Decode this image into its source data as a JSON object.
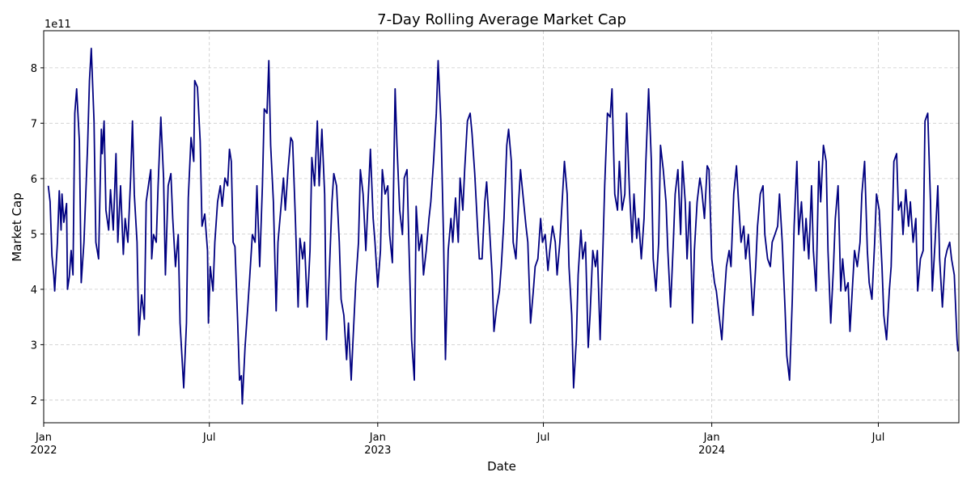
{
  "chart_data": {
    "type": "line",
    "title": "7-Day Rolling Average Market Cap",
    "xlabel": "Date",
    "ylabel": "Market Cap",
    "y_offset_label": "1e11",
    "color": "#000080",
    "grid": true,
    "xlim": [
      0,
      1000
    ],
    "xticks": [
      {
        "value": 0,
        "label": "Jan\n2022"
      },
      {
        "value": 181,
        "label": "Jul"
      },
      {
        "value": 365,
        "label": "Jan\n2023"
      },
      {
        "value": 546,
        "label": "Jul"
      },
      {
        "value": 730,
        "label": "Jan\n2024"
      },
      {
        "value": 912,
        "label": "Jul"
      }
    ],
    "ylim": [
      1.59,
      8.67
    ],
    "yticks": [
      2,
      3,
      4,
      5,
      6,
      7,
      8
    ],
    "x": [
      5,
      7,
      9,
      11,
      12,
      15,
      17,
      19,
      20,
      22,
      25,
      26,
      28,
      30,
      32,
      34,
      36,
      39,
      41,
      44,
      48,
      50,
      52,
      55,
      57,
      60,
      63,
      64,
      66,
      68,
      71,
      73,
      76,
      79,
      81,
      84,
      87,
      89,
      92,
      95,
      97,
      99,
      102,
      104,
      107,
      110,
      112,
      115,
      117,
      118,
      120,
      123,
      125,
      128,
      131,
      133,
      136,
      139,
      141,
      144,
      147,
      149,
      153,
      156,
      158,
      161,
      164,
      165,
      168,
      171,
      173,
      176,
      179,
      180,
      182,
      185,
      187,
      190,
      193,
      195,
      198,
      201,
      203,
      205,
      207,
      209,
      212,
      214,
      216,
      217,
      220,
      223,
      225,
      228,
      231,
      233,
      236,
      239,
      241,
      244,
      246,
      248,
      251,
      254,
      256,
      259,
      262,
      264,
      267,
      270,
      272,
      275,
      278,
      280,
      283,
      285,
      288,
      291,
      293,
      296,
      299,
      301,
      304,
      307,
      309,
      312,
      315,
      317,
      320,
      323,
      325,
      328,
      331,
      333,
      336,
      338,
      341,
      344,
      346,
      349,
      352,
      354,
      357,
      360,
      362,
      365,
      368,
      370,
      373,
      376,
      378,
      381,
      384,
      386,
      389,
      392,
      394,
      397,
      399,
      402,
      405,
      407,
      410,
      413,
      415,
      418,
      421,
      423,
      426,
      429,
      431,
      434,
      437,
      439,
      442,
      445,
      447,
      450,
      453,
      455,
      458,
      460,
      463,
      466,
      468,
      471,
      474,
      476,
      479,
      482,
      484,
      487,
      490,
      492,
      495,
      498,
      500,
      503,
      506,
      508,
      511,
      513,
      516,
      519,
      521,
      524,
      527,
      529,
      532,
      535,
      537,
      540,
      543,
      545,
      548,
      551,
      553,
      556,
      559,
      561,
      564,
      567,
      569,
      572,
      574,
      577,
      579,
      582,
      584,
      587,
      589,
      592,
      595,
      597,
      600,
      603,
      605,
      608,
      611,
      613,
      616,
      619,
      621,
      624,
      627,
      629,
      632,
      635,
      637,
      640,
      643,
      645,
      648,
      650,
      653,
      656,
      658,
      661,
      664,
      666,
      669,
      672,
      674,
      677,
      680,
      682,
      685,
      688,
      690,
      693,
      696,
      698,
      701,
      703,
      706,
      709,
      711,
      714,
      717,
      719,
      722,
      725,
      727,
      730,
      733,
      735,
      738,
      741,
      743,
      746,
      749,
      751,
      754,
      757,
      759,
      762,
      765,
      767,
      770,
      772,
      775,
      778,
      780,
      783,
      786,
      788,
      791,
      794,
      796,
      799,
      802,
      804,
      807,
      810,
      812,
      815,
      818,
      820,
      823,
      825,
      828,
      831,
      833,
      836,
      839,
      841,
      844,
      847,
      849,
      852,
      855,
      857,
      860,
      863,
      865,
      868,
      871,
      873,
      876,
      879,
      881,
      884,
      886,
      889,
      892,
      894,
      897,
      900,
      902,
      905,
      908,
      910,
      913,
      916,
      918,
      921,
      924,
      926,
      929,
      932,
      934,
      937,
      939,
      942,
      945,
      947,
      950,
      953,
      955,
      958,
      961,
      963,
      966,
      969,
      971,
      974,
      977,
      979,
      982,
      985,
      987,
      990,
      992,
      995,
      998,
      999
    ],
    "values": [
      5.87,
      5.58,
      4.61,
      4.26,
      3.97,
      4.85,
      5.78,
      5.07,
      5.72,
      5.21,
      5.55,
      4.0,
      4.23,
      4.7,
      4.26,
      7.18,
      7.62,
      6.67,
      4.12,
      4.85,
      6.6,
      7.77,
      8.35,
      7.04,
      4.85,
      4.55,
      6.89,
      6.45,
      7.04,
      5.43,
      5.07,
      5.8,
      5.07,
      6.45,
      4.85,
      5.87,
      4.63,
      5.28,
      4.85,
      6.01,
      7.04,
      5.72,
      4.85,
      3.17,
      3.9,
      3.46,
      5.58,
      5.94,
      6.16,
      4.55,
      4.99,
      4.85,
      5.87,
      7.11,
      6.01,
      4.26,
      5.87,
      6.09,
      5.28,
      4.41,
      4.99,
      3.39,
      2.22,
      3.39,
      5.65,
      6.74,
      6.31,
      7.77,
      7.65,
      6.67,
      5.14,
      5.36,
      4.7,
      3.39,
      4.41,
      3.97,
      4.85,
      5.58,
      5.87,
      5.5,
      6.01,
      5.87,
      6.53,
      6.31,
      4.85,
      4.77,
      3.39,
      2.36,
      2.44,
      1.93,
      2.95,
      3.68,
      4.19,
      4.99,
      4.85,
      5.87,
      4.41,
      5.87,
      7.26,
      7.18,
      8.13,
      6.6,
      5.58,
      3.61,
      4.85,
      5.43,
      6.01,
      5.43,
      6.16,
      6.74,
      6.67,
      5.28,
      3.68,
      4.92,
      4.55,
      4.85,
      3.68,
      4.7,
      6.38,
      5.87,
      7.04,
      5.87,
      6.89,
      5.72,
      3.09,
      4.26,
      5.58,
      6.09,
      5.87,
      4.85,
      3.82,
      3.53,
      2.73,
      3.39,
      2.36,
      3.09,
      4.12,
      4.85,
      6.16,
      5.72,
      4.7,
      5.43,
      6.53,
      5.28,
      4.85,
      4.04,
      4.7,
      6.16,
      5.72,
      5.87,
      4.99,
      4.48,
      7.62,
      6.6,
      5.43,
      4.99,
      6.01,
      6.16,
      4.85,
      3.09,
      2.36,
      5.5,
      4.7,
      4.99,
      4.26,
      4.7,
      5.28,
      5.58,
      6.31,
      7.18,
      8.13,
      7.04,
      4.85,
      2.73,
      4.7,
      5.28,
      4.85,
      5.65,
      4.85,
      6.01,
      5.43,
      6.16,
      7.04,
      7.18,
      6.82,
      6.09,
      5.14,
      4.55,
      4.55,
      5.58,
      5.94,
      5.14,
      4.26,
      3.24,
      3.68,
      3.97,
      4.41,
      5.28,
      6.6,
      6.89,
      6.31,
      4.85,
      4.55,
      5.58,
      6.16,
      5.65,
      5.14,
      4.85,
      3.39,
      3.97,
      4.41,
      4.55,
      5.28,
      4.85,
      4.99,
      4.34,
      4.7,
      5.14,
      4.85,
      4.26,
      4.85,
      5.72,
      6.31,
      5.72,
      4.41,
      3.53,
      2.22,
      3.09,
      4.26,
      5.07,
      4.55,
      4.85,
      2.95,
      3.53,
      4.7,
      4.41,
      4.7,
      3.09,
      4.7,
      5.87,
      7.18,
      7.11,
      7.62,
      5.72,
      5.43,
      6.31,
      5.43,
      5.72,
      7.18,
      5.8,
      4.85,
      5.72,
      4.92,
      5.28,
      4.55,
      5.28,
      6.31,
      7.62,
      6.31,
      4.55,
      3.97,
      4.85,
      6.6,
      6.16,
      5.58,
      4.7,
      3.68,
      4.85,
      5.72,
      6.16,
      4.99,
      6.31,
      5.58,
      4.55,
      5.58,
      3.39,
      4.7,
      5.58,
      6.01,
      5.8,
      5.28,
      6.23,
      6.16,
      4.55,
      4.12,
      3.97,
      3.53,
      3.09,
      3.68,
      4.41,
      4.7,
      4.41,
      5.72,
      6.23,
      5.65,
      4.85,
      5.14,
      4.55,
      4.99,
      4.41,
      3.53,
      4.41,
      5.14,
      5.72,
      5.87,
      4.99,
      4.55,
      4.41,
      4.85,
      4.99,
      5.14,
      5.72,
      4.85,
      3.68,
      2.8,
      2.36,
      3.82,
      5.14,
      6.31,
      4.99,
      5.58,
      4.7,
      5.28,
      4.55,
      5.87,
      4.7,
      3.97,
      6.31,
      5.58,
      6.6,
      6.31,
      4.7,
      3.39,
      4.41,
      5.28,
      5.87,
      3.97,
      4.55,
      3.97,
      4.12,
      3.24,
      4.12,
      4.7,
      4.41,
      4.85,
      5.72,
      6.31,
      4.7,
      4.12,
      3.82,
      4.85,
      5.72,
      5.43,
      4.41,
      3.53,
      3.09,
      3.97,
      4.41,
      6.31,
      6.45,
      5.43,
      5.58,
      4.99,
      5.8,
      5.14,
      5.58,
      4.85,
      5.28,
      3.97,
      4.55,
      4.7,
      7.04,
      7.18,
      5.58,
      3.97,
      4.85,
      5.87,
      4.55,
      3.68,
      4.55,
      4.7,
      4.85,
      4.55,
      4.26,
      3.09,
      2.88
    ]
  }
}
